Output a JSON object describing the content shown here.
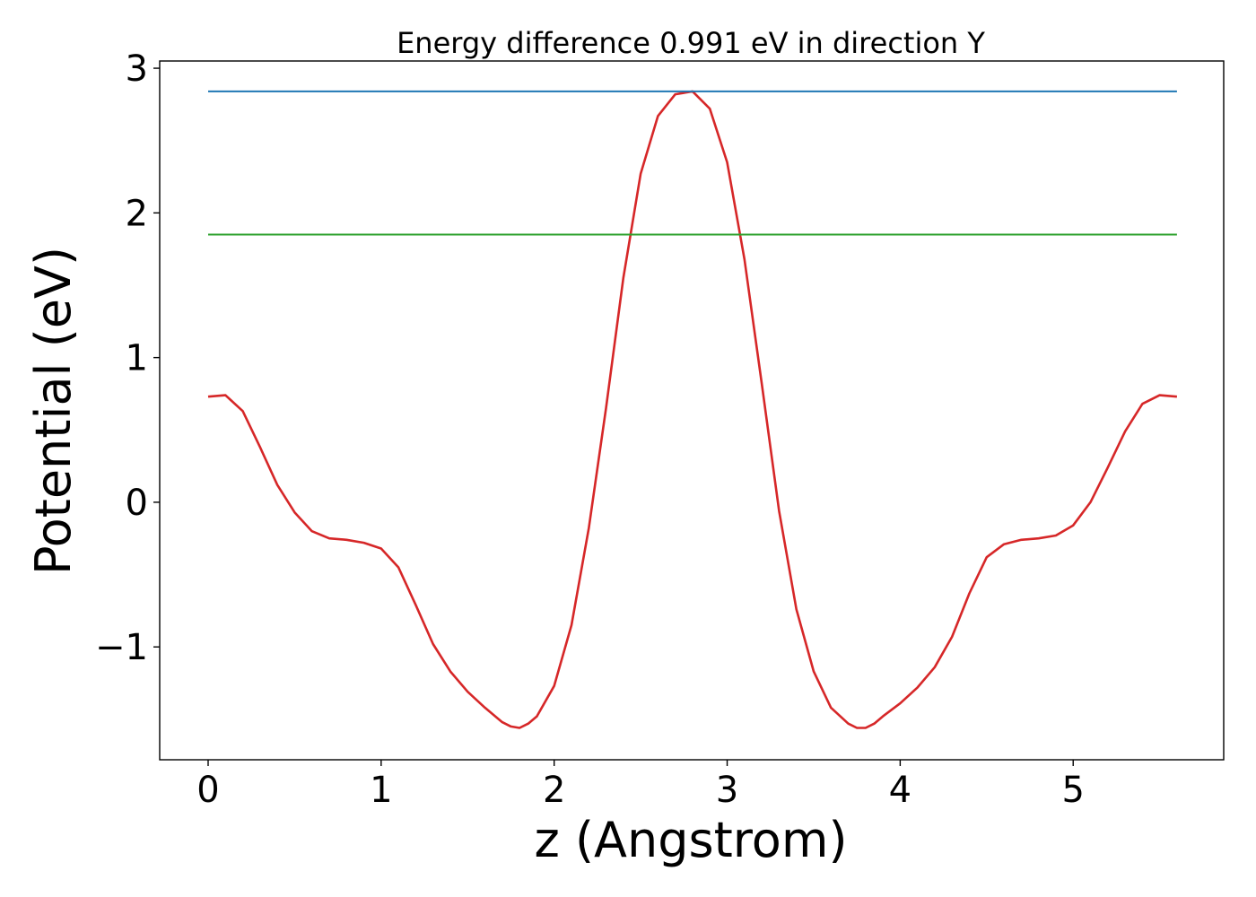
{
  "chart_data": {
    "type": "line",
    "title": "Energy difference 0.991 eV in direction Y",
    "xlabel": "z (Angstrom)",
    "ylabel": "Potential (eV)",
    "xlim": [
      -0.28,
      5.87
    ],
    "ylim": [
      -1.78,
      3.05
    ],
    "xticks": [
      0,
      1,
      2,
      3,
      4,
      5
    ],
    "xtick_labels": [
      "0",
      "1",
      "2",
      "3",
      "4",
      "5"
    ],
    "yticks": [
      -1,
      0,
      1,
      2,
      3
    ],
    "ytick_labels": [
      "−1",
      "0",
      "1",
      "2",
      "3"
    ],
    "grid": false,
    "legend": "none",
    "series": [
      {
        "color": "#d62728",
        "x": [
          0,
          0.1,
          0.2,
          0.3,
          0.4,
          0.5,
          0.6,
          0.7,
          0.8,
          0.9,
          1.0,
          1.1,
          1.2,
          1.3,
          1.4,
          1.5,
          1.6,
          1.7,
          1.75,
          1.8,
          1.85,
          1.9,
          2.0,
          2.1,
          2.2,
          2.3,
          2.4,
          2.5,
          2.6,
          2.7,
          2.8,
          2.9,
          3.0,
          3.1,
          3.2,
          3.3,
          3.4,
          3.5,
          3.6,
          3.7,
          3.75,
          3.8,
          3.85,
          3.9,
          4.0,
          4.1,
          4.2,
          4.3,
          4.4,
          4.5,
          4.6,
          4.7,
          4.8,
          4.9,
          5.0,
          5.1,
          5.2,
          5.3,
          5.4,
          5.5,
          5.6
        ],
        "y": [
          0.73,
          0.74,
          0.63,
          0.38,
          0.12,
          -0.07,
          -0.2,
          -0.25,
          -0.26,
          -0.28,
          -0.32,
          -0.45,
          -0.71,
          -0.98,
          -1.17,
          -1.31,
          -1.42,
          -1.52,
          -1.55,
          -1.56,
          -1.53,
          -1.48,
          -1.27,
          -0.85,
          -0.18,
          0.65,
          1.55,
          2.27,
          2.67,
          2.82,
          2.84,
          2.72,
          2.35,
          1.68,
          0.82,
          -0.06,
          -0.74,
          -1.17,
          -1.42,
          -1.53,
          -1.56,
          -1.56,
          -1.53,
          -1.48,
          -1.39,
          -1.28,
          -1.14,
          -0.93,
          -0.63,
          -0.38,
          -0.29,
          -0.26,
          -0.25,
          -0.23,
          -0.16,
          0.0,
          0.24,
          0.49,
          0.68,
          0.74,
          0.73
        ]
      },
      {
        "color": "#1f77b4",
        "x": [
          0,
          5.6
        ],
        "y": [
          2.84,
          2.84
        ]
      },
      {
        "color": "#2ca02c",
        "x": [
          0,
          5.6
        ],
        "y": [
          1.85,
          1.85
        ]
      }
    ]
  }
}
